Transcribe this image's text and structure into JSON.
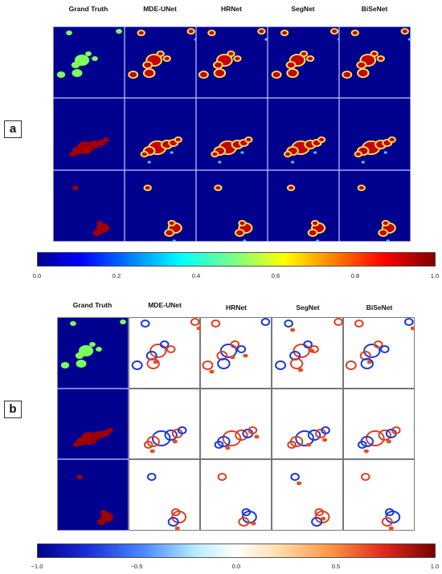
{
  "panel_a": {
    "label": "a",
    "columns": [
      "Grand Truth",
      "MDE-UNet",
      "HRNet",
      "SegNet",
      "BiSeNet"
    ],
    "colorbar": {
      "colormap": "jet",
      "range": [
        0,
        1
      ],
      "ticks": [
        "0.0",
        "0.2",
        "0.4",
        "0.6",
        "0.8",
        "1.0"
      ]
    }
  },
  "panel_b": {
    "label": "b",
    "columns": [
      "Grand Truth",
      "MDE-UNet",
      "HRNet",
      "SegNet",
      "BiSeNet"
    ],
    "colorbar": {
      "colormap": "diverging blue-white-red",
      "range": [
        -1,
        1
      ],
      "ticks": [
        "−1.0",
        "−0.5",
        "0.0",
        "0.5",
        "1.0"
      ]
    }
  },
  "colors": {
    "map_background": "#00008f",
    "error_background": "#ffffff"
  }
}
